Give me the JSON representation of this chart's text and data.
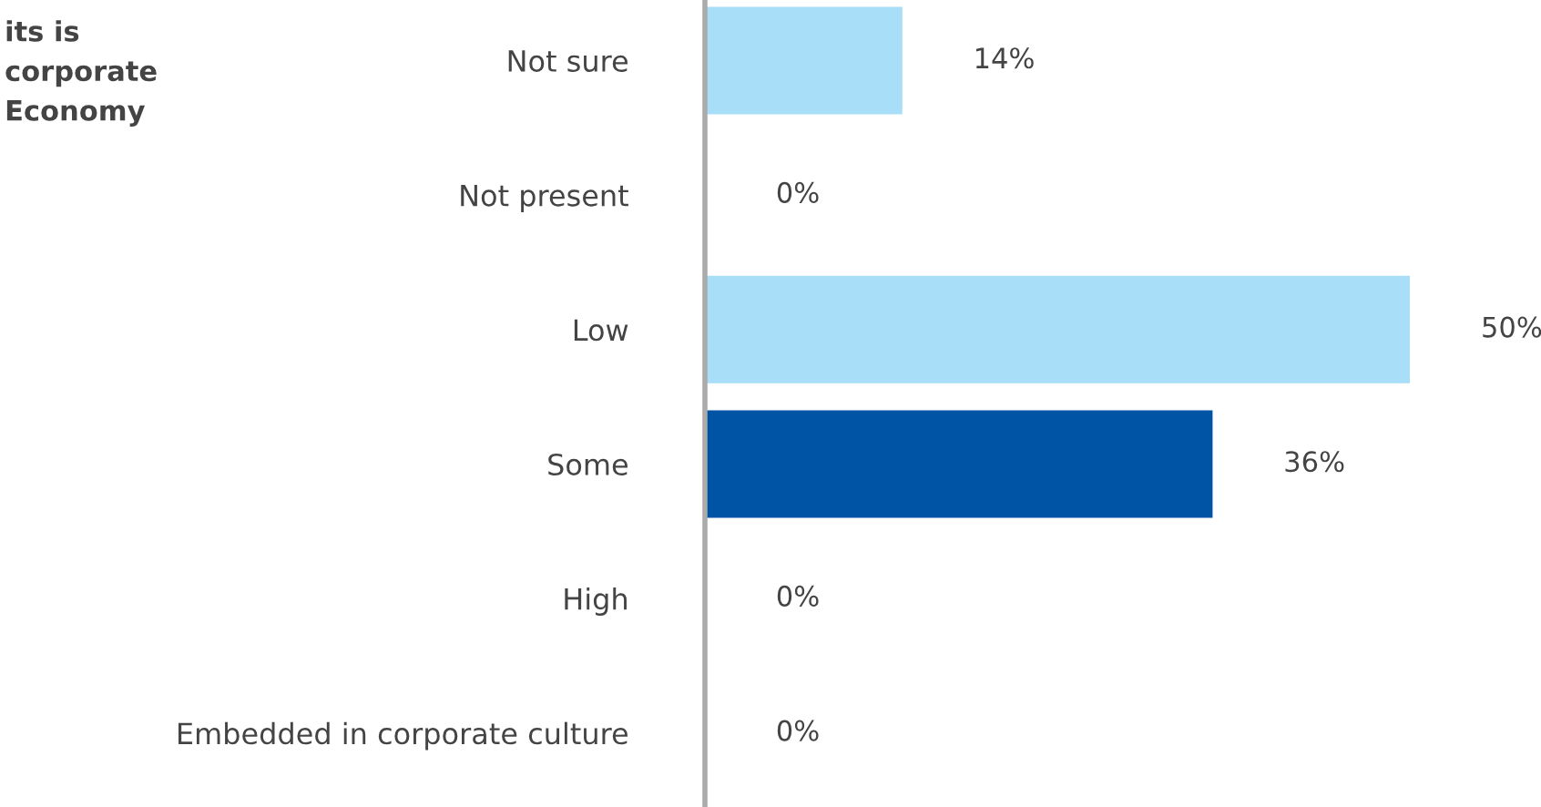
{
  "chart_data": {
    "type": "bar",
    "orientation": "horizontal",
    "title": "its is\ncorporate\nEconomy",
    "categories": [
      "Not sure",
      "Not present",
      "Low",
      "Some",
      "High",
      "Embedded in corporate culture"
    ],
    "values": [
      14,
      0,
      50,
      36,
      0,
      0
    ],
    "colors": [
      "#a9def9",
      "#a9def9",
      "#a9def9",
      "#0054a6",
      "#a9def9",
      "#a9def9"
    ],
    "value_labels": [
      "14%",
      "0%",
      "50%",
      "36%",
      "0%",
      "0%"
    ],
    "grid": false,
    "legend": false
  }
}
